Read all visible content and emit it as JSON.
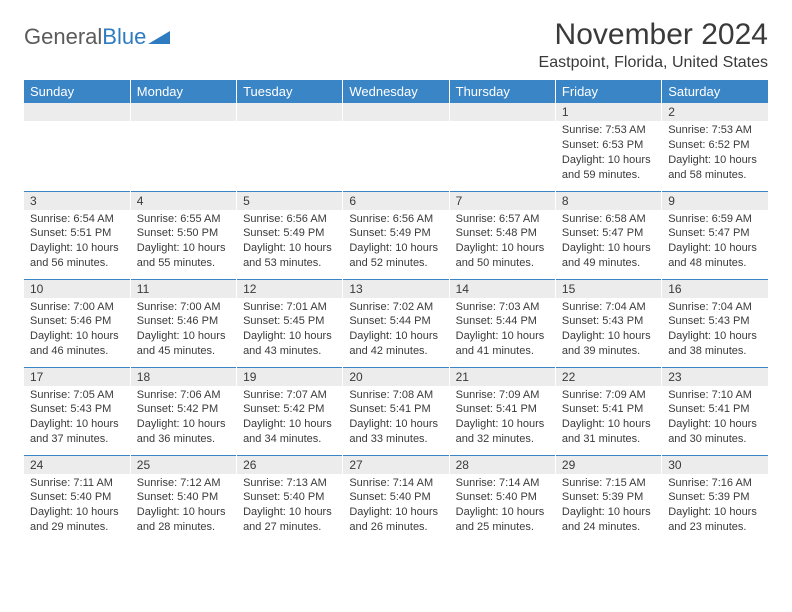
{
  "logo": {
    "text1": "General",
    "text2": "Blue"
  },
  "title": "November 2024",
  "location": "Eastpoint, Florida, United States",
  "colors": {
    "header_bg": "#3a85c6",
    "header_text": "#ffffff",
    "daynum_bg": "#ececec",
    "text": "#3a3a3a",
    "row_border": "#3a85c6",
    "logo_gray": "#5b5b5b",
    "logo_blue": "#2f7bbf"
  },
  "day_headers": [
    "Sunday",
    "Monday",
    "Tuesday",
    "Wednesday",
    "Thursday",
    "Friday",
    "Saturday"
  ],
  "weeks": [
    [
      {
        "n": "",
        "sr": "",
        "ss": "",
        "dl": ""
      },
      {
        "n": "",
        "sr": "",
        "ss": "",
        "dl": ""
      },
      {
        "n": "",
        "sr": "",
        "ss": "",
        "dl": ""
      },
      {
        "n": "",
        "sr": "",
        "ss": "",
        "dl": ""
      },
      {
        "n": "",
        "sr": "",
        "ss": "",
        "dl": ""
      },
      {
        "n": "1",
        "sr": "Sunrise: 7:53 AM",
        "ss": "Sunset: 6:53 PM",
        "dl": "Daylight: 10 hours and 59 minutes."
      },
      {
        "n": "2",
        "sr": "Sunrise: 7:53 AM",
        "ss": "Sunset: 6:52 PM",
        "dl": "Daylight: 10 hours and 58 minutes."
      }
    ],
    [
      {
        "n": "3",
        "sr": "Sunrise: 6:54 AM",
        "ss": "Sunset: 5:51 PM",
        "dl": "Daylight: 10 hours and 56 minutes."
      },
      {
        "n": "4",
        "sr": "Sunrise: 6:55 AM",
        "ss": "Sunset: 5:50 PM",
        "dl": "Daylight: 10 hours and 55 minutes."
      },
      {
        "n": "5",
        "sr": "Sunrise: 6:56 AM",
        "ss": "Sunset: 5:49 PM",
        "dl": "Daylight: 10 hours and 53 minutes."
      },
      {
        "n": "6",
        "sr": "Sunrise: 6:56 AM",
        "ss": "Sunset: 5:49 PM",
        "dl": "Daylight: 10 hours and 52 minutes."
      },
      {
        "n": "7",
        "sr": "Sunrise: 6:57 AM",
        "ss": "Sunset: 5:48 PM",
        "dl": "Daylight: 10 hours and 50 minutes."
      },
      {
        "n": "8",
        "sr": "Sunrise: 6:58 AM",
        "ss": "Sunset: 5:47 PM",
        "dl": "Daylight: 10 hours and 49 minutes."
      },
      {
        "n": "9",
        "sr": "Sunrise: 6:59 AM",
        "ss": "Sunset: 5:47 PM",
        "dl": "Daylight: 10 hours and 48 minutes."
      }
    ],
    [
      {
        "n": "10",
        "sr": "Sunrise: 7:00 AM",
        "ss": "Sunset: 5:46 PM",
        "dl": "Daylight: 10 hours and 46 minutes."
      },
      {
        "n": "11",
        "sr": "Sunrise: 7:00 AM",
        "ss": "Sunset: 5:46 PM",
        "dl": "Daylight: 10 hours and 45 minutes."
      },
      {
        "n": "12",
        "sr": "Sunrise: 7:01 AM",
        "ss": "Sunset: 5:45 PM",
        "dl": "Daylight: 10 hours and 43 minutes."
      },
      {
        "n": "13",
        "sr": "Sunrise: 7:02 AM",
        "ss": "Sunset: 5:44 PM",
        "dl": "Daylight: 10 hours and 42 minutes."
      },
      {
        "n": "14",
        "sr": "Sunrise: 7:03 AM",
        "ss": "Sunset: 5:44 PM",
        "dl": "Daylight: 10 hours and 41 minutes."
      },
      {
        "n": "15",
        "sr": "Sunrise: 7:04 AM",
        "ss": "Sunset: 5:43 PM",
        "dl": "Daylight: 10 hours and 39 minutes."
      },
      {
        "n": "16",
        "sr": "Sunrise: 7:04 AM",
        "ss": "Sunset: 5:43 PM",
        "dl": "Daylight: 10 hours and 38 minutes."
      }
    ],
    [
      {
        "n": "17",
        "sr": "Sunrise: 7:05 AM",
        "ss": "Sunset: 5:43 PM",
        "dl": "Daylight: 10 hours and 37 minutes."
      },
      {
        "n": "18",
        "sr": "Sunrise: 7:06 AM",
        "ss": "Sunset: 5:42 PM",
        "dl": "Daylight: 10 hours and 36 minutes."
      },
      {
        "n": "19",
        "sr": "Sunrise: 7:07 AM",
        "ss": "Sunset: 5:42 PM",
        "dl": "Daylight: 10 hours and 34 minutes."
      },
      {
        "n": "20",
        "sr": "Sunrise: 7:08 AM",
        "ss": "Sunset: 5:41 PM",
        "dl": "Daylight: 10 hours and 33 minutes."
      },
      {
        "n": "21",
        "sr": "Sunrise: 7:09 AM",
        "ss": "Sunset: 5:41 PM",
        "dl": "Daylight: 10 hours and 32 minutes."
      },
      {
        "n": "22",
        "sr": "Sunrise: 7:09 AM",
        "ss": "Sunset: 5:41 PM",
        "dl": "Daylight: 10 hours and 31 minutes."
      },
      {
        "n": "23",
        "sr": "Sunrise: 7:10 AM",
        "ss": "Sunset: 5:41 PM",
        "dl": "Daylight: 10 hours and 30 minutes."
      }
    ],
    [
      {
        "n": "24",
        "sr": "Sunrise: 7:11 AM",
        "ss": "Sunset: 5:40 PM",
        "dl": "Daylight: 10 hours and 29 minutes."
      },
      {
        "n": "25",
        "sr": "Sunrise: 7:12 AM",
        "ss": "Sunset: 5:40 PM",
        "dl": "Daylight: 10 hours and 28 minutes."
      },
      {
        "n": "26",
        "sr": "Sunrise: 7:13 AM",
        "ss": "Sunset: 5:40 PM",
        "dl": "Daylight: 10 hours and 27 minutes."
      },
      {
        "n": "27",
        "sr": "Sunrise: 7:14 AM",
        "ss": "Sunset: 5:40 PM",
        "dl": "Daylight: 10 hours and 26 minutes."
      },
      {
        "n": "28",
        "sr": "Sunrise: 7:14 AM",
        "ss": "Sunset: 5:40 PM",
        "dl": "Daylight: 10 hours and 25 minutes."
      },
      {
        "n": "29",
        "sr": "Sunrise: 7:15 AM",
        "ss": "Sunset: 5:39 PM",
        "dl": "Daylight: 10 hours and 24 minutes."
      },
      {
        "n": "30",
        "sr": "Sunrise: 7:16 AM",
        "ss": "Sunset: 5:39 PM",
        "dl": "Daylight: 10 hours and 23 minutes."
      }
    ]
  ]
}
